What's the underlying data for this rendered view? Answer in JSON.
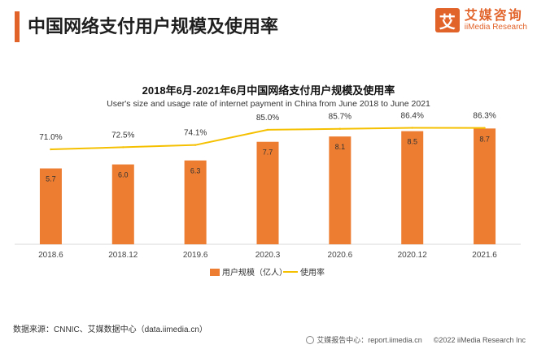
{
  "header": {
    "title": "中国网络支付用户规模及使用率",
    "logo_mark": "艾",
    "logo_cn": "艾媒咨询",
    "logo_en": "iiMedia Research"
  },
  "chart_data": {
    "type": "bar",
    "title": "2018年6月-2021年6月中国网络支付用户规模及使用率",
    "subtitle": "User's size and usage rate of internet payment in China from June 2018 to June 2021",
    "categories": [
      "2018.6",
      "2018.12",
      "2019.6",
      "2020.3",
      "2020.6",
      "2020.12",
      "2021.6"
    ],
    "series": [
      {
        "name": "用户规模（亿人）",
        "type": "bar",
        "color": "#ed7d31",
        "values": [
          5.7,
          6.0,
          6.3,
          7.7,
          8.1,
          8.5,
          8.7
        ],
        "labels": [
          "5.7",
          "6.0",
          "6.3",
          "7.7",
          "8.1",
          "8.5",
          "8.7"
        ]
      },
      {
        "name": "使用率",
        "type": "line",
        "color": "#f5c000",
        "values": [
          71.0,
          72.5,
          74.1,
          85.0,
          85.7,
          86.4,
          86.3
        ],
        "labels": [
          "71.0%",
          "72.5%",
          "74.1%",
          "85.0%",
          "85.7%",
          "86.4%",
          "86.3%"
        ]
      }
    ],
    "legend_position": "bottom",
    "grid": false
  },
  "footer": {
    "source": "数据来源：CNNIC、艾媒数据中心（data.iimedia.cn）",
    "report": "艾媒报告中心：report.iimedia.cn",
    "copyright": "©2022 iiMedia Research Inc"
  }
}
